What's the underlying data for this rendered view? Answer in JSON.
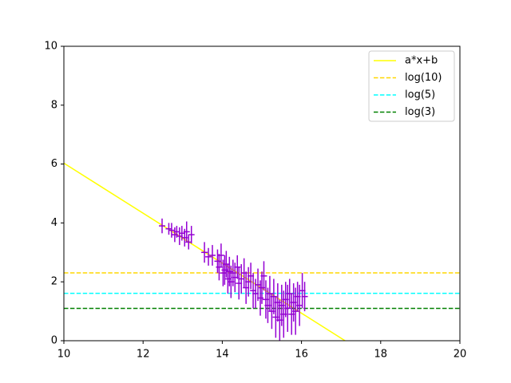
{
  "chart_data": {
    "type": "errorbar",
    "xlim": [
      10,
      20
    ],
    "ylim": [
      0,
      10
    ],
    "xticks": [
      10,
      12,
      14,
      16,
      18,
      20
    ],
    "yticks": [
      0,
      2,
      4,
      6,
      8,
      10
    ],
    "legend": "upper right",
    "errorbars": {
      "color": "#9400d3",
      "xerr": 0.08,
      "x": [
        12.48,
        12.65,
        12.72,
        12.8,
        12.85,
        12.92,
        12.98,
        13.05,
        13.1,
        13.15,
        13.22,
        13.55,
        13.65,
        13.75,
        13.88,
        13.92,
        13.97,
        14.02,
        14.06,
        14.1,
        14.14,
        14.18,
        14.22,
        14.27,
        14.32,
        14.38,
        14.42,
        14.48,
        14.55,
        14.6,
        14.66,
        14.72,
        14.78,
        14.84,
        14.9,
        14.96,
        15.0,
        15.05,
        15.1,
        15.15,
        15.2,
        15.25,
        15.3,
        15.35,
        15.4,
        15.45,
        15.5,
        15.55,
        15.6,
        15.65,
        15.7,
        15.75,
        15.8,
        15.85,
        15.9,
        15.95,
        16.02,
        16.08
      ],
      "values": [
        3.9,
        3.8,
        3.75,
        3.6,
        3.7,
        3.55,
        3.65,
        3.5,
        3.7,
        3.35,
        3.6,
        3.0,
        2.85,
        2.9,
        2.7,
        2.5,
        2.9,
        2.3,
        2.4,
        2.6,
        2.1,
        2.35,
        2.0,
        2.3,
        2.15,
        2.5,
        1.95,
        2.1,
        2.3,
        1.8,
        2.0,
        2.2,
        1.7,
        1.6,
        1.9,
        1.45,
        1.8,
        2.2,
        1.4,
        1.2,
        1.6,
        1.0,
        1.5,
        0.8,
        1.3,
        0.7,
        1.2,
        0.9,
        1.4,
        1.1,
        1.6,
        0.9,
        1.3,
        1.0,
        1.5,
        1.2,
        1.7,
        1.5
      ],
      "yerr": [
        0.25,
        0.2,
        0.25,
        0.25,
        0.2,
        0.3,
        0.25,
        0.3,
        0.35,
        0.25,
        0.3,
        0.35,
        0.3,
        0.35,
        0.4,
        0.45,
        0.4,
        0.45,
        0.5,
        0.45,
        0.5,
        0.5,
        0.55,
        0.45,
        0.5,
        0.4,
        0.55,
        0.5,
        0.5,
        0.55,
        0.5,
        0.45,
        0.6,
        0.5,
        0.55,
        0.6,
        0.55,
        0.5,
        0.65,
        0.6,
        0.6,
        0.6,
        0.6,
        0.7,
        0.65,
        0.7,
        0.7,
        0.8,
        0.6,
        0.8,
        0.5,
        0.7,
        0.65,
        0.8,
        0.5,
        0.7,
        0.6,
        0.5
      ]
    },
    "series": [
      {
        "name": "a*x+b",
        "color": "yellow",
        "dashed": false,
        "x": [
          10,
          17.1
        ],
        "values": [
          6.03,
          0
        ]
      },
      {
        "name": "log(10)",
        "color": "gold",
        "dashed": true,
        "x": [
          10,
          20
        ],
        "values": [
          2.303,
          2.303
        ]
      },
      {
        "name": "log(5)",
        "color": "cyan",
        "dashed": true,
        "x": [
          10,
          20
        ],
        "values": [
          1.609,
          1.609
        ]
      },
      {
        "name": "log(3)",
        "color": "green",
        "dashed": true,
        "x": [
          10,
          20
        ],
        "values": [
          1.099,
          1.099
        ]
      }
    ]
  }
}
